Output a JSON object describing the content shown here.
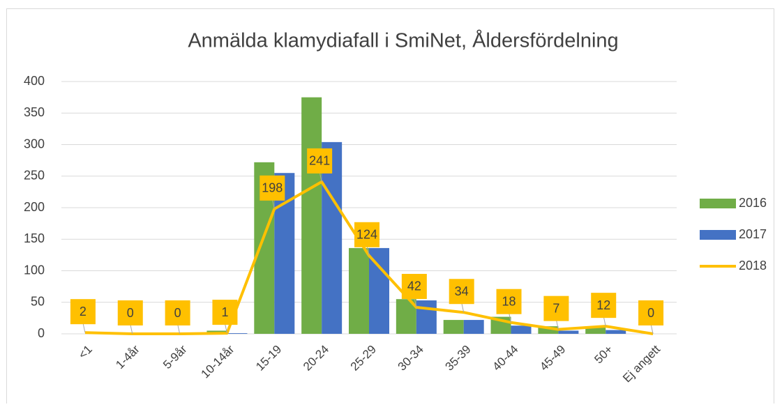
{
  "chart_data": {
    "type": "bar-line",
    "title": "Anmälda klamydiafall i SmiNet, Åldersfördelning",
    "categories": [
      "<1",
      "1-4år",
      "5-9år",
      "10-14år",
      "15-19",
      "20-24",
      "25-29",
      "30-34",
      "35-39",
      "40-44",
      "45-49",
      "50+",
      "Ej angett"
    ],
    "series": [
      {
        "name": "2016",
        "type": "bar",
        "color": "#70ad47",
        "values": [
          0,
          0,
          0,
          5,
          272,
          375,
          136,
          55,
          22,
          27,
          12,
          12,
          0
        ]
      },
      {
        "name": "2017",
        "type": "bar",
        "color": "#4472c4",
        "values": [
          0,
          0,
          0,
          1,
          255,
          304,
          136,
          53,
          22,
          13,
          5,
          6,
          0
        ]
      },
      {
        "name": "2018",
        "type": "line",
        "color": "#ffc000",
        "values": [
          2,
          0,
          0,
          1,
          198,
          241,
          124,
          42,
          34,
          18,
          7,
          12,
          0
        ]
      }
    ],
    "ylim": [
      0,
      400
    ],
    "yticks": [
      0,
      50,
      100,
      150,
      200,
      250,
      300,
      350,
      400
    ],
    "grid": true,
    "legend": "right"
  }
}
